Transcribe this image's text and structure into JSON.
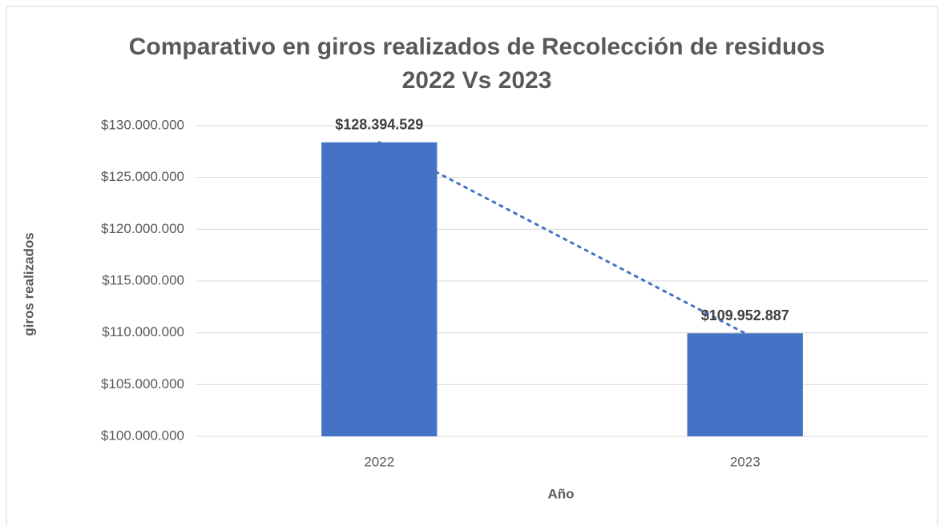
{
  "chart_data": {
    "type": "bar",
    "title": [
      "Comparativo en giros realizados de Recolección de residuos",
      "2022 Vs 2023"
    ],
    "x_label": "Año",
    "y_label": "giros realizados",
    "categories": [
      "2022",
      "2023"
    ],
    "values": [
      128394529,
      109952887
    ],
    "value_labels": [
      "$128.394.529",
      "$109.952.887"
    ],
    "color": "#4472c4",
    "ylim": [
      100000000,
      130000000
    ],
    "yticks": [
      {
        "value": 100000000,
        "label": "$100.000.000"
      },
      {
        "value": 105000000,
        "label": "$105.000.000"
      },
      {
        "value": 110000000,
        "label": "$110.000.000"
      },
      {
        "value": 115000000,
        "label": "$115.000.000"
      },
      {
        "value": 120000000,
        "label": "$120.000.000"
      },
      {
        "value": 125000000,
        "label": "$125.000.000"
      },
      {
        "value": 130000000,
        "label": "$130.000.000"
      }
    ],
    "grid": true,
    "trendline": true
  }
}
